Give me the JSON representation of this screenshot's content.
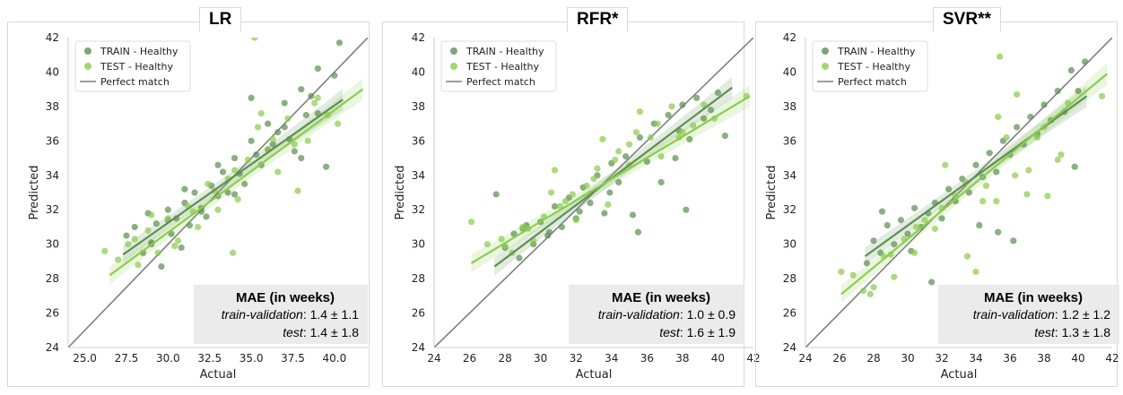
{
  "legend": {
    "train": "TRAIN - Healthy",
    "test": "TEST - Healthy",
    "perfect": "Perfect match"
  },
  "colors": {
    "train": "#5e8f55",
    "test": "#8ccc4c",
    "perfect": "#7f7f7f",
    "panel_bg": "#ffffff"
  },
  "chart_data": [
    {
      "type": "scatter",
      "title": "LR",
      "xlabel": "Actual",
      "ylabel": "Predicted",
      "xlim": [
        24,
        42
      ],
      "ylim": [
        24,
        42
      ],
      "xticks": [
        "25.0",
        "27.5",
        "30.0",
        "32.5",
        "35.0",
        "37.5",
        "40.0"
      ],
      "xtick_values": [
        25,
        27.5,
        30,
        32.5,
        35,
        37.5,
        40
      ],
      "yticks": [
        "24",
        "26",
        "28",
        "30",
        "32",
        "34",
        "36",
        "38",
        "40",
        "42"
      ],
      "grid": false,
      "legend_position": "top-left",
      "series": [
        {
          "name": "TRAIN - Healthy",
          "fit": [
            [
              27.3,
              29.4
            ],
            [
              40.5,
              38.4
            ]
          ],
          "x": [
            27.5,
            28,
            28.5,
            28.8,
            29,
            29.3,
            29.6,
            30,
            30.2,
            30.5,
            30.8,
            31,
            31.3,
            31.6,
            32,
            32.3,
            32.6,
            33,
            33.3,
            33.6,
            34,
            34.3,
            34.6,
            35,
            35.3,
            35.6,
            36,
            36.3,
            36.6,
            37,
            37.3,
            37.6,
            38,
            38.3,
            38.6,
            39,
            39.5,
            40,
            40.3,
            29,
            30,
            31,
            32,
            33,
            34,
            35,
            36,
            37,
            38,
            39
          ],
          "y": [
            30.5,
            31,
            29.5,
            31.8,
            30,
            31.2,
            28.7,
            32,
            30.6,
            31.5,
            29.8,
            32.4,
            31.1,
            33,
            32.1,
            31.6,
            33.4,
            32.8,
            34.2,
            33,
            35,
            34.1,
            33.5,
            36,
            35.2,
            34.6,
            37,
            35.8,
            36.5,
            38.2,
            36.1,
            35.4,
            39,
            37.5,
            38.6,
            40.2,
            34.5,
            39.8,
            41.7,
            30.1,
            31.4,
            33.2,
            31.9,
            34.6,
            32.9,
            38.5,
            35.5,
            36.8,
            35,
            37.6
          ]
        },
        {
          "name": "TEST - Healthy",
          "fit": [
            [
              26.5,
              28.2
            ],
            [
              41.7,
              39
            ]
          ],
          "x": [
            26.2,
            27,
            27.6,
            28.2,
            28.8,
            29.4,
            30,
            30.6,
            31.2,
            31.8,
            32.4,
            33,
            33.6,
            34.2,
            34.8,
            35.4,
            36,
            36.6,
            37.2,
            37.8,
            38.4,
            39,
            39.6,
            40.2,
            28,
            29,
            30.4,
            31.5,
            32.8,
            33.9,
            35.2,
            36.3,
            37.6,
            38.8,
            34,
            35.6
          ],
          "y": [
            29.6,
            29.1,
            30,
            28.8,
            30.8,
            29.5,
            31.5,
            30.2,
            32.2,
            31,
            33.5,
            32,
            33.8,
            32.6,
            34.9,
            36.8,
            35.5,
            34.2,
            37.3,
            33.1,
            36,
            38.5,
            37.5,
            37,
            30.3,
            31.7,
            29.9,
            31.9,
            33.1,
            29.5,
            42,
            36.1,
            35.8,
            38.2,
            34.3,
            37.6
          ]
        }
      ],
      "perfect_line": [
        [
          24,
          24
        ],
        [
          42,
          42
        ]
      ],
      "mae": {
        "title": "MAE (in weeks)",
        "train_label": "train-validation",
        "train_value": ": 1.4 ± 1.1",
        "test_label": "test",
        "test_value": ": 1.4 ± 1.8"
      }
    },
    {
      "type": "scatter",
      "title": "RFR*",
      "xlabel": "Actual",
      "ylabel": "Predicted",
      "xlim": [
        24,
        42
      ],
      "ylim": [
        24,
        42
      ],
      "xticks": [
        "24",
        "26",
        "28",
        "30",
        "32",
        "34",
        "36",
        "38",
        "40",
        "42"
      ],
      "xtick_values": [
        24,
        26,
        28,
        30,
        32,
        34,
        36,
        38,
        40,
        42
      ],
      "yticks": [
        "24",
        "26",
        "28",
        "30",
        "32",
        "34",
        "36",
        "38",
        "40",
        "42"
      ],
      "grid": false,
      "legend_position": "top-left",
      "series": [
        {
          "name": "TRAIN - Healthy",
          "fit": [
            [
              27.4,
              28.7
            ],
            [
              40.8,
              39.1
            ]
          ],
          "x": [
            27.5,
            28,
            28.5,
            28.8,
            29.2,
            29.6,
            30,
            30.4,
            30.8,
            31.2,
            31.6,
            32,
            32.4,
            32.8,
            33.2,
            33.6,
            34,
            34.4,
            34.8,
            35.2,
            35.6,
            36,
            36.4,
            36.8,
            37.2,
            37.6,
            38,
            38.4,
            38.8,
            39.2,
            39.6,
            40,
            40.4,
            29,
            30.5,
            32.2,
            33.9,
            35.5,
            37.8,
            38.2
          ],
          "y": [
            32.9,
            29.8,
            30.6,
            29.2,
            31.1,
            30,
            31.3,
            30.5,
            32.2,
            31,
            32.7,
            31.5,
            33.3,
            32.4,
            34,
            31.8,
            34.7,
            33.6,
            35.1,
            31.7,
            36.2,
            34.8,
            37,
            33.6,
            37.5,
            35,
            38.1,
            36.1,
            38.5,
            37.3,
            37.8,
            38.8,
            36.3,
            30.9,
            30.7,
            31.9,
            33,
            30.7,
            36.6,
            32
          ]
        },
        {
          "name": "TEST - Healthy",
          "fit": [
            [
              26.1,
              28.9
            ],
            [
              41.8,
              38.6
            ]
          ],
          "x": [
            26.1,
            27,
            27.8,
            28.4,
            29,
            29.6,
            30.2,
            30.8,
            31.4,
            32,
            32.6,
            33.2,
            33.8,
            34.4,
            35,
            35.6,
            36.2,
            36.8,
            37.4,
            38,
            38.6,
            39.2,
            39.8,
            41.6,
            28,
            29.3,
            30.6,
            31.8,
            33,
            34.2,
            35.4,
            36.6,
            37.8,
            33.5,
            35,
            31.1
          ],
          "y": [
            31.3,
            30,
            30.3,
            29.5,
            31,
            30.2,
            31.6,
            34.3,
            32.5,
            31.4,
            33.4,
            34.4,
            32.3,
            35.4,
            34.6,
            37.7,
            36.2,
            35.1,
            38,
            36.5,
            36.9,
            38.1,
            37.3,
            38.6,
            29.9,
            30.9,
            33,
            32.9,
            33.8,
            34.9,
            36.5,
            37,
            36.2,
            36.1,
            35.8,
            32.2
          ]
        }
      ],
      "perfect_line": [
        [
          24,
          24
        ],
        [
          42,
          42
        ]
      ],
      "mae": {
        "title": "MAE (in weeks)",
        "train_label": "train-validation",
        "train_value": ": 1.0 ± 0.9",
        "test_label": "test",
        "test_value": ": 1.6 ± 1.9"
      }
    },
    {
      "type": "scatter",
      "title": "SVR**",
      "xlabel": "Actual",
      "ylabel": "Predicted",
      "xlim": [
        24,
        42
      ],
      "ylim": [
        24,
        42
      ],
      "xticks": [
        "24",
        "26",
        "28",
        "30",
        "32",
        "34",
        "36",
        "38",
        "40",
        "42"
      ],
      "xtick_values": [
        24,
        26,
        28,
        30,
        32,
        34,
        36,
        38,
        40,
        42
      ],
      "yticks": [
        "24",
        "26",
        "28",
        "30",
        "32",
        "34",
        "36",
        "38",
        "40",
        "42"
      ],
      "grid": false,
      "legend_position": "top-left",
      "series": [
        {
          "name": "TRAIN - Healthy",
          "fit": [
            [
              27.5,
              29.3
            ],
            [
              40.5,
              38.6
            ]
          ],
          "x": [
            27.6,
            28,
            28.4,
            28.8,
            29.2,
            29.6,
            30,
            30.4,
            30.8,
            31.2,
            31.6,
            32,
            32.4,
            32.8,
            33.2,
            33.6,
            34,
            34.4,
            34.8,
            35.2,
            35.6,
            36,
            36.4,
            36.8,
            37.2,
            37.6,
            38,
            38.4,
            38.8,
            39.2,
            39.6,
            40,
            40.4,
            28.5,
            30.2,
            31.4,
            34.2,
            35.3,
            36.2,
            39.8
          ],
          "y": [
            28.9,
            30.2,
            29.5,
            31.1,
            30,
            31.4,
            30.6,
            32.1,
            31,
            31.8,
            32.4,
            31.5,
            33.2,
            32.5,
            33.8,
            33,
            34.6,
            33.9,
            35.3,
            34.2,
            36,
            35.2,
            36.8,
            35.8,
            37.4,
            36.4,
            38.1,
            37.2,
            38.9,
            37.7,
            40.1,
            38.9,
            40.6,
            31.9,
            29.6,
            27.8,
            31.1,
            30.7,
            30.2,
            34.5
          ]
        },
        {
          "name": "TEST - Healthy",
          "fit": [
            [
              26.1,
              27.1
            ],
            [
              41.7,
              39.9
            ]
          ],
          "x": [
            26.1,
            26.8,
            27.4,
            28,
            28.6,
            29.2,
            29.8,
            30.4,
            31,
            31.6,
            32.2,
            32.8,
            33.4,
            34,
            34.6,
            35.2,
            35.8,
            36.4,
            37,
            37.6,
            38.2,
            38.8,
            39.4,
            41.4,
            27.8,
            29,
            30.5,
            32,
            33.5,
            34.4,
            35.4,
            36.3,
            37.1,
            38,
            39,
            35.3
          ],
          "y": [
            28.4,
            28.2,
            27.3,
            27.5,
            29.3,
            28.1,
            30.3,
            29.5,
            31.4,
            30.9,
            34.6,
            32.8,
            33.6,
            28.4,
            33.4,
            32.5,
            36.2,
            38.7,
            32.9,
            36.2,
            32.8,
            34.9,
            38.2,
            38.6,
            27.1,
            29.4,
            31,
            32.1,
            29.3,
            32.5,
            40.9,
            34,
            34.3,
            36.8,
            35.2,
            37.4
          ]
        }
      ],
      "perfect_line": [
        [
          24,
          24
        ],
        [
          42,
          42
        ]
      ],
      "mae": {
        "title": "MAE (in weeks)",
        "train_label": "train-validation",
        "train_value": ": 1.2 ± 1.2",
        "test_label": "test",
        "test_value": ": 1.3 ± 1.8"
      }
    }
  ]
}
